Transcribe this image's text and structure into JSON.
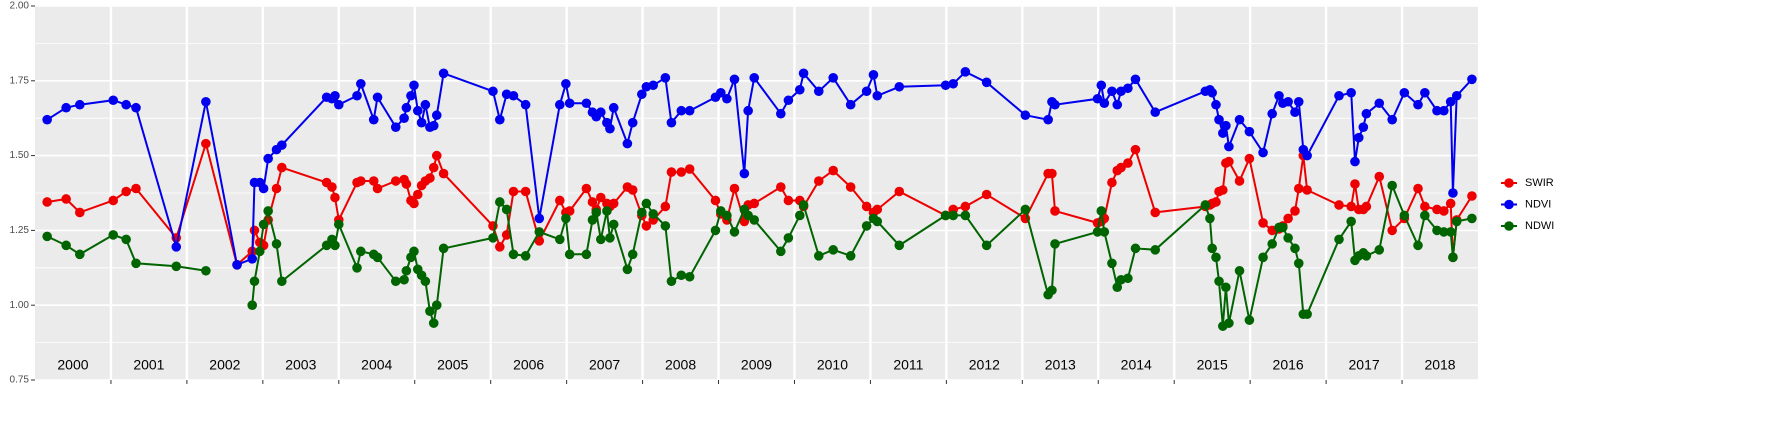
{
  "chart_data": {
    "type": "line",
    "x": [
      2000.16,
      2000.41,
      2000.59,
      2001.03,
      2001.2,
      2001.33,
      2001.86,
      2002.25,
      2002.66,
      2002.86,
      2002.89,
      2002.96,
      2003.01,
      2003.07,
      2003.18,
      2003.25,
      2003.84,
      2003.91,
      2003.95,
      2004.0,
      2004.24,
      2004.29,
      2004.46,
      2004.51,
      2004.75,
      2004.86,
      2004.89,
      2004.95,
      2004.99,
      2005.04,
      2005.09,
      2005.14,
      2005.2,
      2005.25,
      2005.29,
      2005.38,
      2006.03,
      2006.12,
      2006.21,
      2006.3,
      2006.46,
      2006.64,
      2006.91,
      2006.99,
      2007.04,
      2007.26,
      2007.34,
      2007.39,
      2007.45,
      2007.53,
      2007.57,
      2007.62,
      2007.8,
      2007.87,
      2007.99,
      2008.05,
      2008.14,
      2008.3,
      2008.38,
      2008.51,
      2008.62,
      2008.96,
      2009.03,
      2009.11,
      2009.21,
      2009.34,
      2009.39,
      2009.47,
      2009.82,
      2009.92,
      2010.07,
      2010.12,
      2010.32,
      2010.51,
      2010.74,
      2010.95,
      2011.04,
      2011.09,
      2011.38,
      2011.99,
      2012.09,
      2012.25,
      2012.53,
      2013.04,
      2013.34,
      2013.39,
      2013.43,
      2013.99,
      2014.04,
      2014.08,
      2014.18,
      2014.25,
      2014.3,
      2014.39,
      2014.49,
      2014.75,
      2015.41,
      2015.47,
      2015.5,
      2015.55,
      2015.59,
      2015.64,
      2015.68,
      2015.72,
      2015.86,
      2015.99,
      2016.17,
      2016.29,
      2016.38,
      2016.43,
      2016.5,
      2016.59,
      2016.64,
      2016.7,
      2016.75,
      2017.17,
      2017.33,
      2017.38,
      2017.43,
      2017.49,
      2017.53,
      2017.7,
      2017.87,
      2018.03,
      2018.21,
      2018.3,
      2018.46,
      2018.55,
      2018.64,
      2018.67,
      2018.72,
      2018.92
    ],
    "series": [
      {
        "name": "SWIR",
        "color": "#ee0000",
        "values": [
          1.345,
          1.355,
          1.31,
          1.35,
          1.38,
          1.39,
          1.225,
          1.54,
          1.135,
          1.18,
          1.25,
          1.21,
          1.2,
          1.285,
          1.39,
          1.46,
          1.41,
          1.395,
          1.36,
          1.285,
          1.41,
          1.415,
          1.415,
          1.39,
          1.415,
          1.42,
          1.405,
          1.35,
          1.34,
          1.37,
          1.4,
          1.415,
          1.425,
          1.46,
          1.5,
          1.44,
          1.265,
          1.195,
          1.235,
          1.38,
          1.38,
          1.215,
          1.35,
          1.31,
          1.315,
          1.39,
          1.345,
          1.32,
          1.36,
          1.34,
          1.33,
          1.34,
          1.395,
          1.385,
          1.3,
          1.265,
          1.285,
          1.33,
          1.445,
          1.445,
          1.455,
          1.35,
          1.305,
          1.285,
          1.39,
          1.28,
          1.335,
          1.34,
          1.395,
          1.35,
          1.35,
          1.33,
          1.415,
          1.45,
          1.395,
          1.33,
          1.31,
          1.32,
          1.38,
          1.3,
          1.32,
          1.33,
          1.37,
          1.29,
          1.44,
          1.44,
          1.315,
          1.275,
          1.28,
          1.29,
          1.41,
          1.45,
          1.46,
          1.475,
          1.52,
          1.31,
          1.33,
          1.335,
          1.34,
          1.345,
          1.38,
          1.385,
          1.475,
          1.48,
          1.415,
          1.49,
          1.275,
          1.25,
          1.255,
          1.265,
          1.29,
          1.315,
          1.39,
          1.5,
          1.385,
          1.335,
          1.33,
          1.405,
          1.32,
          1.32,
          1.33,
          1.43,
          1.25,
          1.29,
          1.39,
          1.33,
          1.32,
          1.315,
          1.34,
          1.16,
          1.285,
          1.365
        ]
      },
      {
        "name": "NDVI",
        "color": "#0000ee",
        "values": [
          1.62,
          1.66,
          1.67,
          1.685,
          1.67,
          1.66,
          1.195,
          1.68,
          1.135,
          1.155,
          1.41,
          1.41,
          1.39,
          1.49,
          1.52,
          1.535,
          1.695,
          1.69,
          1.7,
          1.67,
          1.7,
          1.74,
          1.62,
          1.695,
          1.595,
          1.625,
          1.66,
          1.7,
          1.735,
          1.65,
          1.61,
          1.67,
          1.595,
          1.6,
          1.635,
          1.775,
          1.715,
          1.62,
          1.705,
          1.7,
          1.67,
          1.29,
          1.67,
          1.74,
          1.675,
          1.675,
          1.645,
          1.63,
          1.645,
          1.61,
          1.59,
          1.66,
          1.54,
          1.61,
          1.705,
          1.73,
          1.735,
          1.76,
          1.61,
          1.65,
          1.65,
          1.695,
          1.71,
          1.69,
          1.755,
          1.44,
          1.65,
          1.76,
          1.64,
          1.685,
          1.72,
          1.775,
          1.715,
          1.76,
          1.67,
          1.715,
          1.77,
          1.7,
          1.73,
          1.735,
          1.74,
          1.78,
          1.745,
          1.635,
          1.62,
          1.68,
          1.67,
          1.69,
          1.735,
          1.675,
          1.715,
          1.67,
          1.715,
          1.725,
          1.755,
          1.645,
          1.715,
          1.72,
          1.71,
          1.67,
          1.62,
          1.575,
          1.6,
          1.53,
          1.62,
          1.58,
          1.51,
          1.64,
          1.7,
          1.675,
          1.68,
          1.645,
          1.68,
          1.52,
          1.5,
          1.7,
          1.71,
          1.48,
          1.56,
          1.595,
          1.64,
          1.675,
          1.62,
          1.71,
          1.67,
          1.71,
          1.65,
          1.65,
          1.68,
          1.375,
          1.7,
          1.755
        ]
      },
      {
        "name": "NDWI",
        "color": "#006400",
        "values": [
          1.23,
          1.2,
          1.17,
          1.235,
          1.22,
          1.14,
          1.13,
          1.115,
          null,
          1.0,
          1.08,
          1.18,
          1.27,
          1.315,
          1.205,
          1.08,
          1.2,
          1.22,
          1.2,
          1.27,
          1.125,
          1.18,
          1.17,
          1.16,
          1.08,
          1.085,
          1.115,
          1.16,
          1.18,
          1.12,
          1.1,
          1.08,
          0.98,
          0.94,
          1.0,
          1.19,
          1.225,
          1.345,
          1.32,
          1.17,
          1.165,
          1.245,
          1.22,
          1.29,
          1.17,
          1.17,
          1.285,
          1.31,
          1.22,
          1.315,
          1.225,
          1.27,
          1.12,
          1.17,
          1.31,
          1.34,
          1.305,
          1.265,
          1.08,
          1.1,
          1.095,
          1.25,
          1.315,
          1.3,
          1.245,
          1.32,
          1.3,
          1.285,
          1.18,
          1.225,
          1.3,
          1.335,
          1.165,
          1.185,
          1.165,
          1.265,
          1.29,
          1.28,
          1.2,
          1.3,
          1.3,
          1.3,
          1.2,
          1.32,
          1.035,
          1.05,
          1.205,
          1.245,
          1.315,
          1.245,
          1.14,
          1.06,
          1.085,
          1.09,
          1.19,
          1.185,
          1.335,
          1.29,
          1.19,
          1.16,
          1.08,
          0.93,
          1.06,
          0.94,
          1.115,
          0.95,
          1.16,
          1.205,
          1.26,
          1.26,
          1.225,
          1.19,
          1.14,
          0.97,
          0.97,
          1.22,
          1.28,
          1.15,
          1.165,
          1.175,
          1.165,
          1.185,
          1.4,
          1.3,
          1.2,
          1.3,
          1.25,
          1.245,
          1.245,
          1.16,
          1.28,
          1.29
        ]
      }
    ],
    "xlim": [
      2000,
      2019
    ],
    "xticks": [
      2001,
      2002,
      2003,
      2004,
      2005,
      2006,
      2007,
      2008,
      2009,
      2010,
      2011,
      2012,
      2013,
      2014,
      2015,
      2016,
      2017,
      2018
    ],
    "ylim": [
      0.75,
      2.0
    ],
    "yticks": [
      {
        "value": 0.75,
        "label": "0.75"
      },
      {
        "value": 1.0,
        "label": "1.00"
      },
      {
        "value": 1.25,
        "label": "1.25"
      },
      {
        "value": 1.5,
        "label": "1.50"
      },
      {
        "value": 1.75,
        "label": "1.75"
      },
      {
        "value": 2.0,
        "label": "2.00"
      }
    ],
    "year_labels": [
      "2000",
      "2001",
      "2002",
      "2003",
      "2004",
      "2005",
      "2006",
      "2007",
      "2008",
      "2009",
      "2010",
      "2011",
      "2012",
      "2013",
      "2014",
      "2015",
      "2016",
      "2017",
      "2018"
    ],
    "grid": true,
    "legend": "right"
  }
}
